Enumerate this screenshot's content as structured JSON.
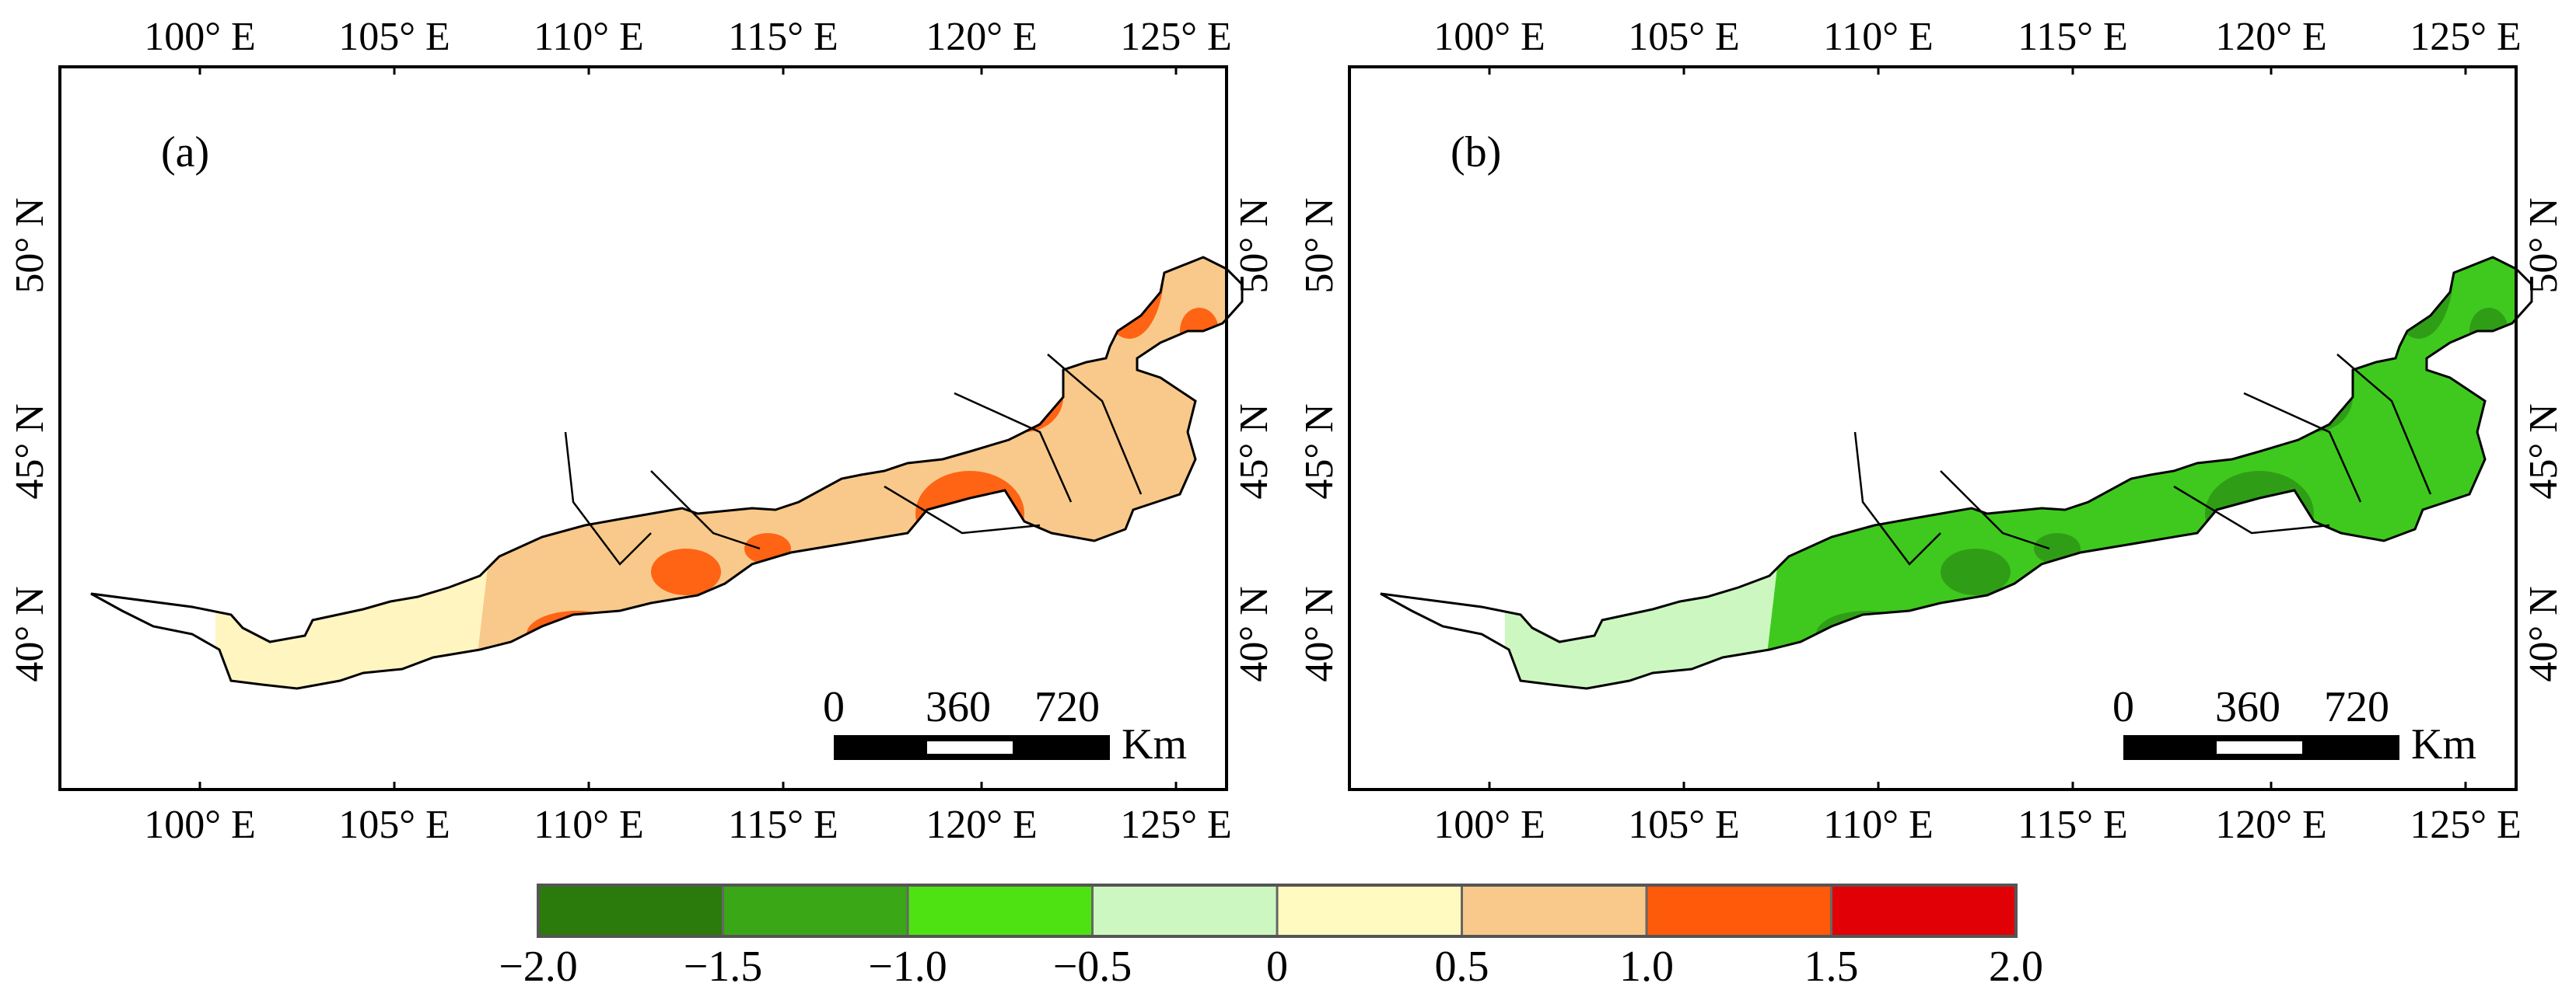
{
  "figure": {
    "panels": [
      {
        "label": "(a)",
        "lon_ticks": [
          "100° E",
          "105° E",
          "110° E",
          "115° E",
          "120° E",
          "125° E"
        ],
        "lat_ticks": [
          "40° N",
          "45° N",
          "50° N"
        ],
        "scale_bar": {
          "labels": [
            "0",
            "360",
            "720"
          ],
          "unit": "Km"
        },
        "colors": {
          "low": "#fff5c0",
          "mid": "#f8c98a",
          "high": "#ff5a0a"
        }
      },
      {
        "label": "(b)",
        "lon_ticks": [
          "100° E",
          "105° E",
          "110° E",
          "115° E",
          "120° E",
          "125° E"
        ],
        "lat_ticks": [
          "40° N",
          "45° N",
          "50° N"
        ],
        "scale_bar": {
          "labels": [
            "0",
            "360",
            "720"
          ],
          "unit": "Km"
        },
        "colors": {
          "low": "#cdf7c0",
          "mid": "#3fc91e",
          "high": "#2e9a16"
        }
      }
    ],
    "legend": {
      "colors": [
        "#2a7a0c",
        "#3aa716",
        "#4fe212",
        "#cdf7c0",
        "#fffbc0",
        "#f8c98a",
        "#ff5a0a",
        "#e10005"
      ],
      "labels": [
        "−2.0",
        "−1.5",
        "−1.0",
        "−0.5",
        "0",
        "0.5",
        "1.0",
        "1.5",
        "2.0"
      ]
    }
  }
}
